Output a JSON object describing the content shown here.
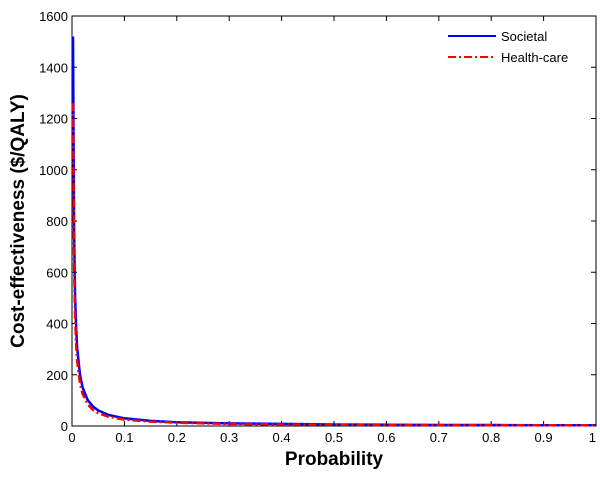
{
  "chart_data": {
    "type": "line",
    "title": "",
    "xlabel": "Probability",
    "ylabel": "Cost-effectiveness ($/QALY)",
    "xlim": [
      0,
      1
    ],
    "ylim": [
      0,
      1600
    ],
    "xticks": [
      0,
      0.1,
      0.2,
      0.3,
      0.4,
      0.5,
      0.6,
      0.7,
      0.8,
      0.9,
      1
    ],
    "xtick_labels": [
      "0",
      "0.1",
      "0.2",
      "0.3",
      "0.4",
      "0.5",
      "0.6",
      "0.7",
      "0.8",
      "0.9",
      "1"
    ],
    "yticks": [
      0,
      200,
      400,
      600,
      800,
      1000,
      1200,
      1400,
      1600
    ],
    "ytick_labels": [
      "0",
      "200",
      "400",
      "600",
      "800",
      "1000",
      "1200",
      "1400",
      "1600"
    ],
    "grid": false,
    "legend": {
      "placement": "top-right",
      "entries": [
        "Societal",
        "Health-care"
      ]
    },
    "series": [
      {
        "name": "Societal",
        "color": "#0000ff",
        "style": "solid",
        "x": [
          0.002,
          0.004,
          0.006,
          0.008,
          0.01,
          0.015,
          0.02,
          0.03,
          0.04,
          0.05,
          0.07,
          0.1,
          0.15,
          0.2,
          0.3,
          0.4,
          0.5,
          0.6,
          0.7,
          0.8,
          0.9,
          1.0
        ],
        "y": [
          1520,
          760,
          507,
          380,
          304,
          203,
          152,
          101,
          76,
          61,
          43,
          30,
          20,
          15,
          10,
          8,
          6,
          5,
          4,
          4,
          3,
          3
        ]
      },
      {
        "name": "Health-care",
        "color": "#ff0000",
        "style": "dash-dot",
        "x": [
          0.002,
          0.004,
          0.006,
          0.008,
          0.01,
          0.015,
          0.02,
          0.03,
          0.04,
          0.05,
          0.07,
          0.1,
          0.15,
          0.2,
          0.3,
          0.4,
          0.5,
          0.6,
          0.7,
          0.8,
          0.9,
          1.0
        ],
        "y": [
          1260,
          630,
          420,
          315,
          252,
          168,
          126,
          84,
          63,
          50,
          36,
          25,
          17,
          13,
          8,
          6,
          5,
          4,
          4,
          3,
          3,
          3
        ]
      }
    ]
  }
}
